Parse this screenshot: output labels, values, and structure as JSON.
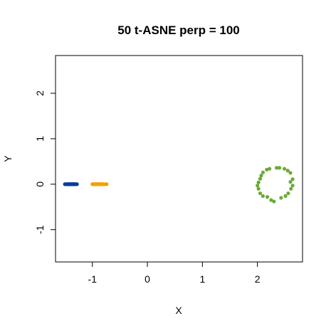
{
  "chart_data": {
    "type": "scatter",
    "title": "50 t-ASNE perp = 100",
    "xlabel": "X",
    "ylabel": "Y",
    "xlim": [
      -1.67,
      2.82
    ],
    "ylim": [
      -1.71,
      2.83
    ],
    "xticks": [
      -1,
      0,
      1,
      2
    ],
    "yticks": [
      -1,
      0,
      1,
      2
    ],
    "grid": false,
    "series": [
      {
        "color": "#0c3c9c",
        "points": [
          [
            -1.5,
            0.0
          ],
          [
            -1.48,
            0.0
          ],
          [
            -1.46,
            0.0
          ],
          [
            -1.45,
            0.0
          ],
          [
            -1.44,
            0.0
          ],
          [
            -1.43,
            0.0
          ],
          [
            -1.42,
            0.0
          ],
          [
            -1.41,
            0.0
          ],
          [
            -1.4,
            0.0
          ],
          [
            -1.39,
            0.0
          ],
          [
            -1.38,
            0.0
          ],
          [
            -1.37,
            0.0
          ],
          [
            -1.36,
            0.0
          ],
          [
            -1.35,
            0.0
          ],
          [
            -1.34,
            0.0
          ],
          [
            -1.33,
            0.0
          ],
          [
            -1.32,
            0.0
          ],
          [
            -1.31,
            0.0
          ],
          [
            -1.3,
            0.0
          ],
          [
            -1.28,
            0.0
          ]
        ]
      },
      {
        "color": "#f5a000",
        "points": [
          [
            -1.0,
            0.0
          ],
          [
            -0.98,
            0.0
          ],
          [
            -0.96,
            0.0
          ],
          [
            -0.95,
            0.0
          ],
          [
            -0.94,
            0.0
          ],
          [
            -0.93,
            0.0
          ],
          [
            -0.92,
            0.0
          ],
          [
            -0.91,
            0.0
          ],
          [
            -0.9,
            0.0
          ],
          [
            -0.89,
            0.0
          ],
          [
            -0.88,
            0.0
          ],
          [
            -0.87,
            0.0
          ],
          [
            -0.86,
            0.0
          ],
          [
            -0.85,
            0.0
          ],
          [
            -0.84,
            0.0
          ],
          [
            -0.83,
            0.0
          ],
          [
            -0.82,
            0.0
          ],
          [
            -0.8,
            0.0
          ],
          [
            -0.77,
            0.0
          ],
          [
            -0.74,
            0.0
          ]
        ]
      },
      {
        "color": "#6aaa35",
        "points": [
          [
            2.6,
            0.05
          ],
          [
            2.64,
            0.11
          ],
          [
            2.64,
            -0.03
          ],
          [
            2.61,
            -0.1
          ],
          [
            2.56,
            -0.2
          ],
          [
            2.51,
            -0.26
          ],
          [
            2.43,
            -0.3
          ],
          [
            2.3,
            -0.38
          ],
          [
            2.25,
            -0.35
          ],
          [
            2.18,
            -0.28
          ],
          [
            2.1,
            -0.26
          ],
          [
            2.05,
            -0.2
          ],
          [
            2.02,
            -0.1
          ],
          [
            2.0,
            -0.03
          ],
          [
            2.02,
            0.04
          ],
          [
            2.05,
            0.12
          ],
          [
            2.07,
            0.19
          ],
          [
            2.1,
            0.26
          ],
          [
            2.17,
            0.32
          ],
          [
            2.22,
            0.34
          ],
          [
            2.35,
            0.36
          ],
          [
            2.4,
            0.36
          ],
          [
            2.49,
            0.34
          ],
          [
            2.55,
            0.3
          ],
          [
            2.6,
            0.25
          ]
        ]
      }
    ]
  }
}
